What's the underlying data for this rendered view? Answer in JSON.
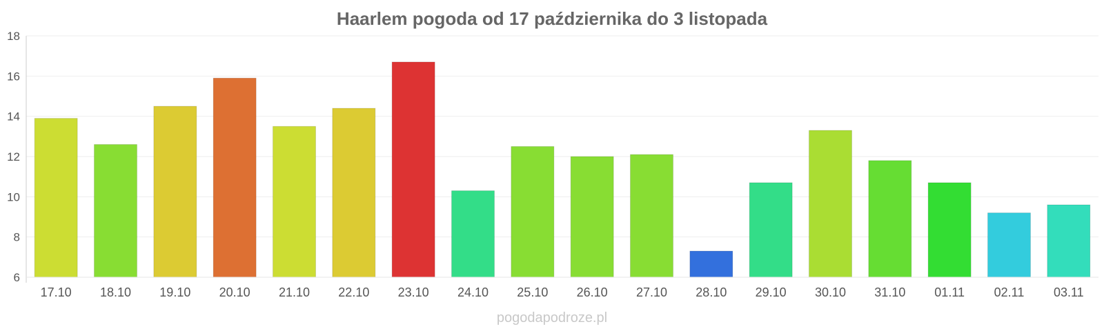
{
  "chart_data": {
    "type": "bar",
    "title": "Haarlem pogoda od 17 października do 3 listopada",
    "xlabel": "",
    "ylabel": "",
    "ylim": [
      6,
      18
    ],
    "yticks": [
      "6",
      "8",
      "10",
      "12",
      "14",
      "16",
      "18"
    ],
    "grid": true,
    "categories": [
      "17.10",
      "18.10",
      "19.10",
      "20.10",
      "21.10",
      "22.10",
      "23.10",
      "24.10",
      "25.10",
      "26.10",
      "27.10",
      "28.10",
      "29.10",
      "30.10",
      "31.10",
      "01.11",
      "02.11",
      "03.11"
    ],
    "values": [
      13.9,
      12.6,
      14.5,
      15.9,
      13.5,
      14.4,
      16.7,
      10.3,
      12.5,
      12.0,
      12.1,
      7.3,
      10.7,
      13.3,
      11.8,
      10.7,
      9.2,
      9.6
    ],
    "colors": [
      "#ccdd33",
      "#88dd33",
      "#dccb33",
      "#dd7033",
      "#ccdd33",
      "#dccb33",
      "#dd3333",
      "#33dd88",
      "#88dd33",
      "#88dd33",
      "#88dd33",
      "#3370dd",
      "#33dd88",
      "#aadd33",
      "#66dd33",
      "#33dd33",
      "#33ccdd",
      "#33ddbb"
    ]
  },
  "watermark": "pogodapodroze.pl"
}
